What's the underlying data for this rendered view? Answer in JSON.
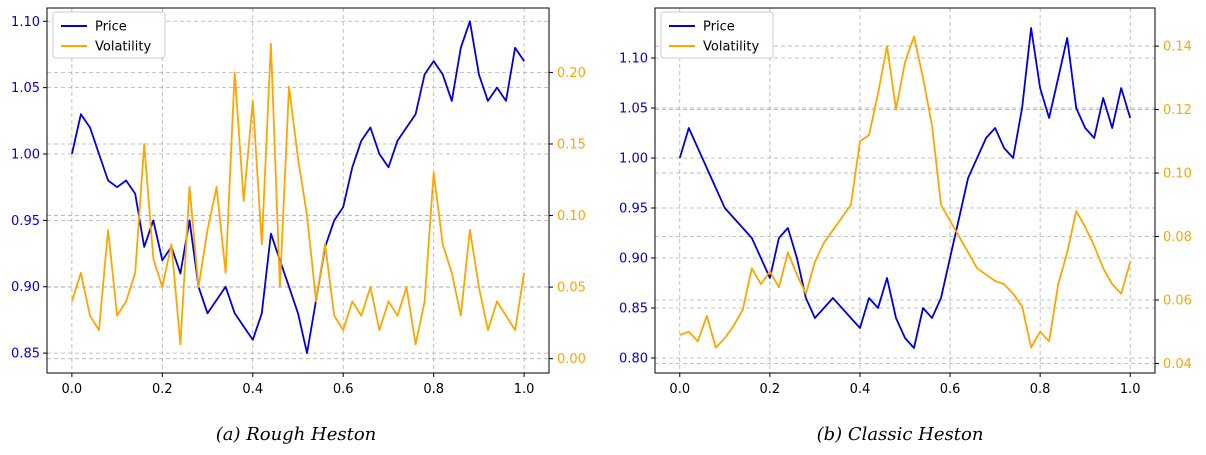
{
  "chart_data": [
    {
      "type": "line",
      "caption": "(a) Rough Heston",
      "x": [
        0.0,
        0.02,
        0.04,
        0.06,
        0.08,
        0.1,
        0.12,
        0.14,
        0.16,
        0.18,
        0.2,
        0.22,
        0.24,
        0.26,
        0.28,
        0.3,
        0.32,
        0.34,
        0.36,
        0.38,
        0.4,
        0.42,
        0.44,
        0.46,
        0.48,
        0.5,
        0.52,
        0.54,
        0.56,
        0.58,
        0.6,
        0.62,
        0.64,
        0.66,
        0.68,
        0.7,
        0.72,
        0.74,
        0.76,
        0.78,
        0.8,
        0.82,
        0.84,
        0.86,
        0.88,
        0.9,
        0.92,
        0.94,
        0.96,
        0.98,
        1.0
      ],
      "series": [
        {
          "name": "Price",
          "axis": "left",
          "color": "#0000dd",
          "values": [
            1.0,
            1.03,
            1.02,
            1.0,
            0.98,
            0.975,
            0.98,
            0.97,
            0.93,
            0.95,
            0.92,
            0.93,
            0.91,
            0.95,
            0.9,
            0.88,
            0.89,
            0.9,
            0.88,
            0.87,
            0.86,
            0.88,
            0.94,
            0.92,
            0.9,
            0.88,
            0.85,
            0.89,
            0.93,
            0.95,
            0.96,
            0.99,
            1.01,
            1.02,
            1.0,
            0.99,
            1.01,
            1.02,
            1.03,
            1.06,
            1.07,
            1.06,
            1.04,
            1.08,
            1.1,
            1.06,
            1.04,
            1.05,
            1.04,
            1.08,
            1.07
          ]
        },
        {
          "name": "Volatility",
          "axis": "right",
          "color": "#ffa500",
          "values": [
            0.04,
            0.06,
            0.03,
            0.02,
            0.09,
            0.03,
            0.04,
            0.06,
            0.15,
            0.07,
            0.05,
            0.08,
            0.01,
            0.12,
            0.05,
            0.09,
            0.12,
            0.06,
            0.2,
            0.11,
            0.18,
            0.08,
            0.22,
            0.05,
            0.19,
            0.14,
            0.1,
            0.04,
            0.08,
            0.03,
            0.02,
            0.04,
            0.03,
            0.05,
            0.02,
            0.04,
            0.03,
            0.05,
            0.01,
            0.04,
            0.13,
            0.08,
            0.06,
            0.03,
            0.09,
            0.05,
            0.02,
            0.04,
            0.03,
            0.02,
            0.06
          ]
        }
      ],
      "xlim": [
        -0.055,
        1.055
      ],
      "ylim_left": [
        0.835,
        1.11
      ],
      "ylim_right": [
        -0.01,
        0.245
      ],
      "xticks": [
        "0.0",
        "0.2",
        "0.4",
        "0.6",
        "0.8",
        "1.0"
      ],
      "yticks_left": [
        "0.85",
        "0.90",
        "0.95",
        "1.00",
        "1.05",
        "1.10"
      ],
      "yticks_right": [
        "0.00",
        "0.05",
        "0.10",
        "0.15",
        "0.20"
      ],
      "grid": true,
      "legend": "upper-left"
    },
    {
      "type": "line",
      "caption": "(b) Classic Heston",
      "x": [
        0.0,
        0.02,
        0.04,
        0.06,
        0.08,
        0.1,
        0.12,
        0.14,
        0.16,
        0.18,
        0.2,
        0.22,
        0.24,
        0.26,
        0.28,
        0.3,
        0.32,
        0.34,
        0.36,
        0.38,
        0.4,
        0.42,
        0.44,
        0.46,
        0.48,
        0.5,
        0.52,
        0.54,
        0.56,
        0.58,
        0.6,
        0.62,
        0.64,
        0.66,
        0.68,
        0.7,
        0.72,
        0.74,
        0.76,
        0.78,
        0.8,
        0.82,
        0.84,
        0.86,
        0.88,
        0.9,
        0.92,
        0.94,
        0.96,
        0.98,
        1.0
      ],
      "series": [
        {
          "name": "Price",
          "axis": "left",
          "color": "#0000dd",
          "values": [
            1.0,
            1.03,
            1.01,
            0.99,
            0.97,
            0.95,
            0.94,
            0.93,
            0.92,
            0.9,
            0.88,
            0.92,
            0.93,
            0.9,
            0.86,
            0.84,
            0.85,
            0.86,
            0.85,
            0.84,
            0.83,
            0.86,
            0.85,
            0.88,
            0.84,
            0.82,
            0.81,
            0.85,
            0.84,
            0.86,
            0.9,
            0.94,
            0.98,
            1.0,
            1.02,
            1.03,
            1.01,
            1.0,
            1.05,
            1.13,
            1.07,
            1.04,
            1.08,
            1.12,
            1.05,
            1.03,
            1.02,
            1.06,
            1.03,
            1.07,
            1.04
          ]
        },
        {
          "name": "Volatility",
          "axis": "right",
          "color": "#ffa500",
          "values": [
            0.049,
            0.05,
            0.047,
            0.055,
            0.045,
            0.048,
            0.052,
            0.057,
            0.07,
            0.065,
            0.069,
            0.064,
            0.075,
            0.068,
            0.062,
            0.072,
            0.078,
            0.082,
            0.086,
            0.09,
            0.11,
            0.112,
            0.125,
            0.14,
            0.12,
            0.135,
            0.143,
            0.13,
            0.115,
            0.09,
            0.085,
            0.08,
            0.075,
            0.07,
            0.068,
            0.066,
            0.065,
            0.062,
            0.058,
            0.045,
            0.05,
            0.047,
            0.065,
            0.075,
            0.088,
            0.083,
            0.077,
            0.07,
            0.065,
            0.062,
            0.072
          ]
        }
      ],
      "xlim": [
        -0.055,
        1.055
      ],
      "ylim_left": [
        0.785,
        1.15
      ],
      "ylim_right": [
        0.037,
        0.152
      ],
      "xticks": [
        "0.0",
        "0.2",
        "0.4",
        "0.6",
        "0.8",
        "1.0"
      ],
      "yticks_left": [
        "0.80",
        "0.85",
        "0.90",
        "0.95",
        "1.00",
        "1.05",
        "1.10"
      ],
      "yticks_right": [
        "0.04",
        "0.06",
        "0.08",
        "0.10",
        "0.12",
        "0.14"
      ],
      "grid": true,
      "legend": "upper-left"
    }
  ]
}
